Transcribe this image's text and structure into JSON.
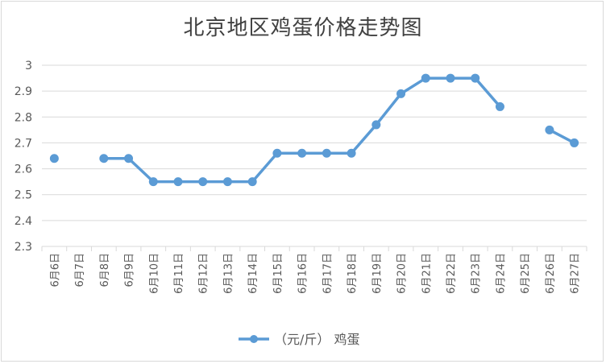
{
  "chart_data": {
    "type": "line",
    "title": "北京地区鸡蛋价格走势图",
    "x": [
      "6月6日",
      "6月7日",
      "6月8日",
      "6月9日",
      "6月10日",
      "6月11日",
      "6月12日",
      "6月13日",
      "6月14日",
      "6月15日",
      "6月16日",
      "6月17日",
      "6月18日",
      "6月19日",
      "6月20日",
      "6月21日",
      "6月22日",
      "6月23日",
      "6月24日",
      "6月25日",
      "6月26日",
      "6月27日"
    ],
    "series": [
      {
        "name": "（元/斤） 鸡蛋",
        "values": [
          2.64,
          null,
          2.64,
          2.64,
          2.55,
          2.55,
          2.55,
          2.55,
          2.55,
          2.66,
          2.66,
          2.66,
          2.66,
          2.77,
          2.89,
          2.95,
          2.95,
          2.95,
          2.84,
          null,
          2.75,
          2.7
        ],
        "color": "#5b9bd5"
      }
    ],
    "ylim": [
      2.3,
      3.0
    ],
    "yticks": [
      "2.3",
      "2.4",
      "2.5",
      "2.6",
      "2.7",
      "2.8",
      "2.9",
      "3"
    ],
    "grid": true,
    "legend": "bottom",
    "xlabel": "",
    "ylabel": ""
  }
}
